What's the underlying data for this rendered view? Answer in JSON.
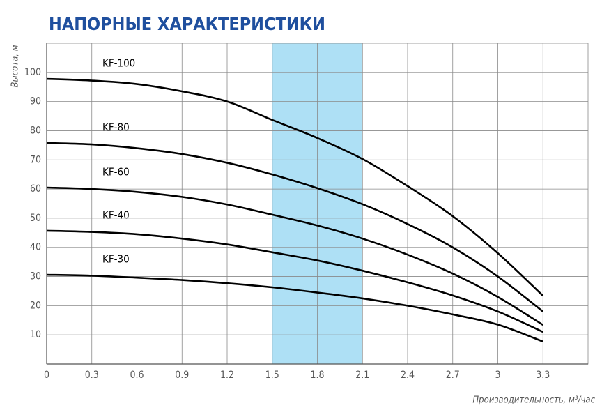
{
  "chart_data": {
    "type": "line",
    "title": "НАПОРНЫЕ ХАРАКТЕРИСТИКИ",
    "y_label": "Высота, м",
    "x_label": "Производительность, м³/час",
    "x": [
      0,
      0.3,
      0.6,
      0.9,
      1.2,
      1.5,
      1.8,
      2.1,
      2.4,
      2.7,
      3,
      3.3
    ],
    "series": [
      {
        "name": "KF-100",
        "color": "#000000",
        "values": [
          97.8,
          97.2,
          96,
          93.5,
          90,
          83.7,
          77.5,
          70.3,
          61,
          50.7,
          38,
          23.4
        ]
      },
      {
        "name": "KF-80",
        "color": "#000000",
        "values": [
          75.8,
          75.3,
          74,
          72,
          69,
          65,
          60.3,
          54.8,
          48,
          40,
          30,
          18
        ]
      },
      {
        "name": "KF-60",
        "color": "#000000",
        "values": [
          60.5,
          60,
          59,
          57.3,
          54.7,
          51.2,
          47.5,
          43,
          37.5,
          31,
          23,
          13.4
        ]
      },
      {
        "name": "KF-40",
        "color": "#000000",
        "values": [
          45.7,
          45.3,
          44.5,
          43,
          41,
          38.3,
          35.5,
          32,
          28,
          23.5,
          18,
          11
        ]
      },
      {
        "name": "KF-30",
        "color": "#000000",
        "values": [
          30.6,
          30.3,
          29.6,
          28.8,
          27.7,
          26.3,
          24.5,
          22.5,
          20,
          17,
          13.5,
          7.7
        ]
      }
    ],
    "xlim": [
      0,
      3.6
    ],
    "ylim": [
      0,
      110
    ],
    "xticks": [
      0,
      0.3,
      0.6,
      0.9,
      1.2,
      1.5,
      1.8,
      2.1,
      2.4,
      2.7,
      3,
      3.3
    ],
    "yticks": [
      10,
      20,
      30,
      40,
      50,
      60,
      70,
      80,
      90,
      100
    ],
    "grid": true,
    "highlight": {
      "from": 1.5,
      "to": 2.1,
      "color": "#aee0f5"
    }
  }
}
